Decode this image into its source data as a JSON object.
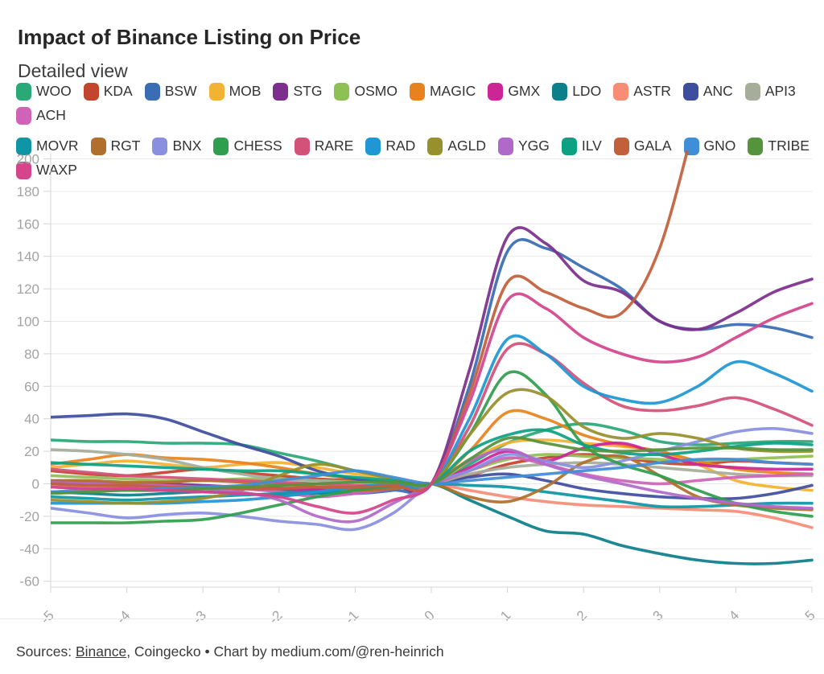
{
  "title": "Impact of Binance Listing on Price",
  "subtitle": "Detailed view",
  "footer": {
    "sources_label": "Sources:",
    "link": "Binance",
    "rest": ", Coingecko • Chart by medium.com/@ren-heinrich"
  },
  "colors": {
    "grid": "#e9e9e9",
    "axis": "#d4d4d4",
    "tick_label": "#a3a3a3",
    "background": "#ffffff"
  },
  "chart_data": {
    "type": "line",
    "title": "Impact of Binance Listing on Price",
    "subtitle": "Detailed view",
    "xlabel": "",
    "ylabel": "",
    "xlim": [
      -5,
      5
    ],
    "ylim": [
      -60,
      200
    ],
    "grid": "horizontal",
    "legend_position": "top",
    "xticks": [
      -5,
      -4,
      -3,
      -2,
      -1,
      0,
      1,
      2,
      3,
      4,
      5
    ],
    "yticks": [
      200,
      180,
      160,
      140,
      120,
      100,
      80,
      60,
      40,
      20,
      0,
      -20,
      -40,
      -60
    ],
    "legend_row_break_after": 13,
    "x": [
      -5,
      -4.5,
      -4,
      -3.5,
      -3,
      -2.5,
      -2,
      -1.5,
      -1,
      -0.5,
      0,
      0.5,
      1,
      1.5,
      2,
      2.5,
      3,
      3.5,
      4,
      4.5,
      5
    ],
    "series": [
      {
        "name": "WOO",
        "color": "#2aa876",
        "values": [
          27,
          26,
          26,
          25,
          25,
          24,
          19,
          14,
          8,
          3,
          0,
          12,
          25,
          33,
          37,
          33,
          26,
          24,
          25,
          26,
          26
        ]
      },
      {
        "name": "KDA",
        "color": "#c2452d",
        "values": [
          8,
          6,
          5,
          7,
          9,
          7,
          5,
          3,
          2,
          1,
          0,
          5,
          12,
          16,
          18,
          16,
          13,
          12,
          14,
          13,
          12
        ]
      },
      {
        "name": "BSW",
        "color": "#3a6db4",
        "values": [
          0,
          -1,
          -2,
          -2,
          -3,
          -3,
          -4,
          -5,
          -6,
          -4,
          0,
          60,
          143,
          145,
          133,
          120,
          100,
          95,
          98,
          96,
          90
        ]
      },
      {
        "name": "MOB",
        "color": "#f2b234",
        "values": [
          10,
          12,
          14,
          12,
          10,
          12,
          13,
          10,
          6,
          3,
          0,
          14,
          25,
          27,
          25,
          23,
          20,
          12,
          2,
          -2,
          -4
        ]
      },
      {
        "name": "STG",
        "color": "#7d2f8d",
        "values": [
          1,
          1,
          0,
          0,
          -1,
          -2,
          -2,
          -3,
          -2,
          -1,
          0,
          70,
          152,
          148,
          125,
          118,
          100,
          95,
          105,
          118,
          126
        ]
      },
      {
        "name": "OSMO",
        "color": "#8fc055",
        "values": [
          5,
          4,
          3,
          2,
          2,
          3,
          3,
          2,
          1,
          0,
          0,
          8,
          15,
          18,
          17,
          16,
          15,
          14,
          15,
          16,
          17
        ]
      },
      {
        "name": "MAGIC",
        "color": "#e8821e",
        "values": [
          12,
          15,
          18,
          16,
          15,
          13,
          10,
          6,
          3,
          1,
          0,
          20,
          44,
          40,
          30,
          24,
          20,
          14,
          9,
          7,
          6
        ]
      },
      {
        "name": "GMX",
        "color": "#cc2596",
        "values": [
          -2,
          -3,
          -4,
          -4,
          -3,
          -2,
          -3,
          -4,
          -3,
          -1,
          0,
          10,
          20,
          14,
          22,
          25,
          18,
          12,
          10,
          9,
          9
        ]
      },
      {
        "name": "LDO",
        "color": "#0d7f8a",
        "values": [
          -5,
          -6,
          -7,
          -6,
          -5,
          -6,
          -7,
          -6,
          -4,
          -2,
          0,
          -10,
          -20,
          -29,
          -31,
          -38,
          -43,
          -47,
          -49,
          -49,
          -47
        ]
      },
      {
        "name": "ASTR",
        "color": "#f88d76",
        "values": [
          -2,
          -2,
          -3,
          -3,
          -2,
          -2,
          -1,
          -2,
          -2,
          -1,
          0,
          -4,
          -8,
          -11,
          -13,
          -14,
          -15,
          -16,
          -17,
          -21,
          -27
        ]
      },
      {
        "name": "ANC",
        "color": "#3f4d9e",
        "values": [
          41,
          42,
          43,
          40,
          32,
          24,
          17,
          8,
          3,
          1,
          0,
          4,
          6,
          2,
          -3,
          -6,
          -8,
          -9,
          -9,
          -6,
          -1
        ]
      },
      {
        "name": "API3",
        "color": "#a6ad9b",
        "values": [
          21,
          20,
          18,
          15,
          10,
          6,
          3,
          2,
          1,
          0,
          0,
          6,
          10,
          12,
          13,
          12,
          10,
          8,
          6,
          5,
          5
        ]
      },
      {
        "name": "ACH",
        "color": "#cf63b7",
        "values": [
          2,
          1,
          0,
          -1,
          -2,
          -3,
          -5,
          -8,
          -6,
          -3,
          0,
          8,
          16,
          12,
          6,
          2,
          0,
          2,
          4,
          5,
          6
        ]
      },
      {
        "name": "MOVR",
        "color": "#0e96a5",
        "values": [
          -8,
          -9,
          -10,
          -9,
          -8,
          -7,
          -6,
          -5,
          -4,
          -2,
          0,
          -1,
          -2,
          -5,
          -8,
          -11,
          -14,
          -14,
          -13,
          -12,
          -12
        ]
      },
      {
        "name": "RGT",
        "color": "#b06f2c",
        "values": [
          2,
          2,
          1,
          1,
          2,
          1,
          0,
          -2,
          -4,
          -3,
          0,
          -8,
          -11,
          -2,
          13,
          17,
          5,
          -8,
          -13,
          -15,
          -16
        ]
      },
      {
        "name": "BNX",
        "color": "#8a8fe0",
        "values": [
          -15,
          -18,
          -21,
          -19,
          -18,
          -20,
          -23,
          -25,
          -28,
          -18,
          0,
          8,
          18,
          14,
          10,
          14,
          20,
          26,
          32,
          34,
          31
        ]
      },
      {
        "name": "CHESS",
        "color": "#2f9e4f",
        "values": [
          -24,
          -24,
          -24,
          -23,
          -22,
          -18,
          -13,
          -8,
          -4,
          -1,
          0,
          30,
          68,
          55,
          24,
          12,
          5,
          -4,
          -12,
          -17,
          -20
        ]
      },
      {
        "name": "RARE",
        "color": "#d4527a",
        "values": [
          9,
          7,
          5,
          4,
          3,
          2,
          1,
          0,
          -1,
          -1,
          0,
          35,
          83,
          80,
          62,
          48,
          45,
          48,
          53,
          46,
          36
        ]
      },
      {
        "name": "RAD",
        "color": "#1f97d4",
        "values": [
          -12,
          -12,
          -12,
          -12,
          -11,
          -10,
          -8,
          -5,
          -2,
          0,
          0,
          40,
          89,
          80,
          60,
          52,
          50,
          60,
          75,
          68,
          57
        ]
      },
      {
        "name": "AGLD",
        "color": "#97902c",
        "values": [
          -10,
          -11,
          -12,
          -11,
          -9,
          -4,
          5,
          12,
          8,
          3,
          0,
          30,
          56,
          54,
          35,
          28,
          31,
          28,
          22,
          20,
          20
        ]
      },
      {
        "name": "YGG",
        "color": "#b069c9",
        "values": [
          1,
          0,
          -1,
          -2,
          -3,
          -5,
          -10,
          -20,
          -23,
          -12,
          0,
          14,
          21,
          12,
          5,
          0,
          -5,
          -9,
          -12,
          -14,
          -15
        ]
      },
      {
        "name": "ILV",
        "color": "#0da183",
        "values": [
          13,
          12,
          11,
          10,
          9,
          8,
          8,
          6,
          4,
          2,
          0,
          20,
          30,
          33,
          24,
          19,
          18,
          20,
          23,
          25,
          24
        ]
      },
      {
        "name": "GALA",
        "color": "#c2603c",
        "values": [
          0,
          -1,
          -1,
          -2,
          -2,
          -3,
          -3,
          -2,
          -2,
          -1,
          0,
          55,
          124,
          118,
          108,
          105,
          145,
          230,
          null,
          null,
          null
        ]
      },
      {
        "name": "GNO",
        "color": "#3f8ed8",
        "values": [
          -5,
          -4,
          -4,
          -3,
          -2,
          -1,
          2,
          5,
          8,
          4,
          0,
          2,
          4,
          6,
          8,
          10,
          13,
          15,
          15,
          13,
          12
        ]
      },
      {
        "name": "TRIBE",
        "color": "#55933c",
        "values": [
          -6,
          -5,
          -4,
          -4,
          -3,
          -2,
          -1,
          0,
          1,
          1,
          0,
          15,
          28,
          25,
          21,
          20,
          21,
          22,
          22,
          21,
          21
        ]
      },
      {
        "name": "WAXP",
        "color": "#d4458c",
        "values": [
          -2,
          -3,
          -3,
          -4,
          -5,
          -6,
          -8,
          -14,
          -18,
          -10,
          0,
          50,
          113,
          108,
          90,
          80,
          75,
          78,
          90,
          102,
          111
        ]
      }
    ]
  }
}
